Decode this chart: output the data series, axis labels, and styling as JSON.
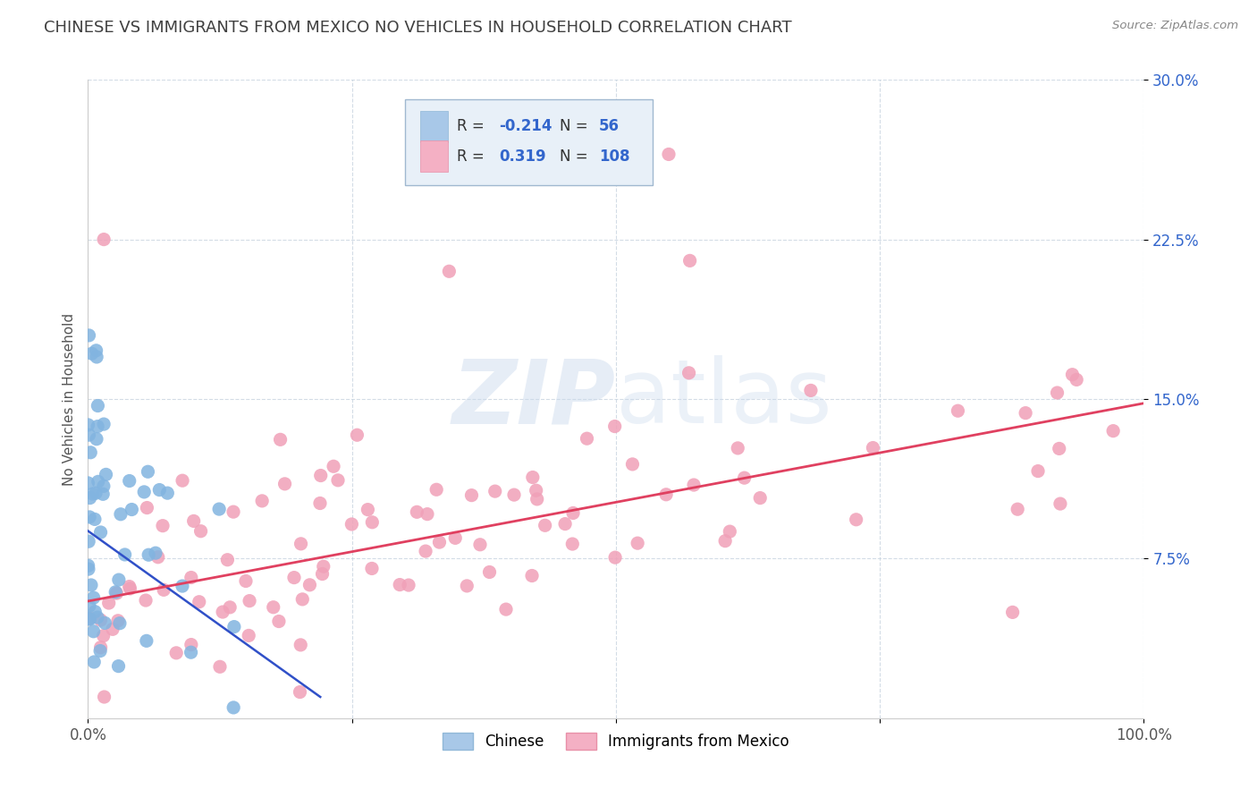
{
  "title": "CHINESE VS IMMIGRANTS FROM MEXICO NO VEHICLES IN HOUSEHOLD CORRELATION CHART",
  "source": "Source: ZipAtlas.com",
  "ylabel": "No Vehicles in Household",
  "watermark": "ZIPatlas",
  "chinese_color": "#82b4e0",
  "mexico_color": "#f0a0b8",
  "chinese_line_color": "#3050c8",
  "mexico_line_color": "#e04060",
  "legend_box_color": "#e8f0f8",
  "legend_border_color": "#a0b8d0",
  "R_color": "#3366cc",
  "N_color": "#3366cc",
  "label_color": "#3366cc",
  "xmin": 0.0,
  "xmax": 1.0,
  "ymin": 0.0,
  "ymax": 0.3,
  "yticks": [
    0.075,
    0.15,
    0.225,
    0.3
  ],
  "ytick_labels": [
    "7.5%",
    "15.0%",
    "22.5%",
    "30.0%"
  ],
  "xtick_labels": [
    "0.0%",
    "100.0%"
  ],
  "grid_color": "#c8d4e0",
  "background_color": "#ffffff",
  "title_color": "#404040",
  "title_fontsize": 13,
  "source_color": "#888888"
}
